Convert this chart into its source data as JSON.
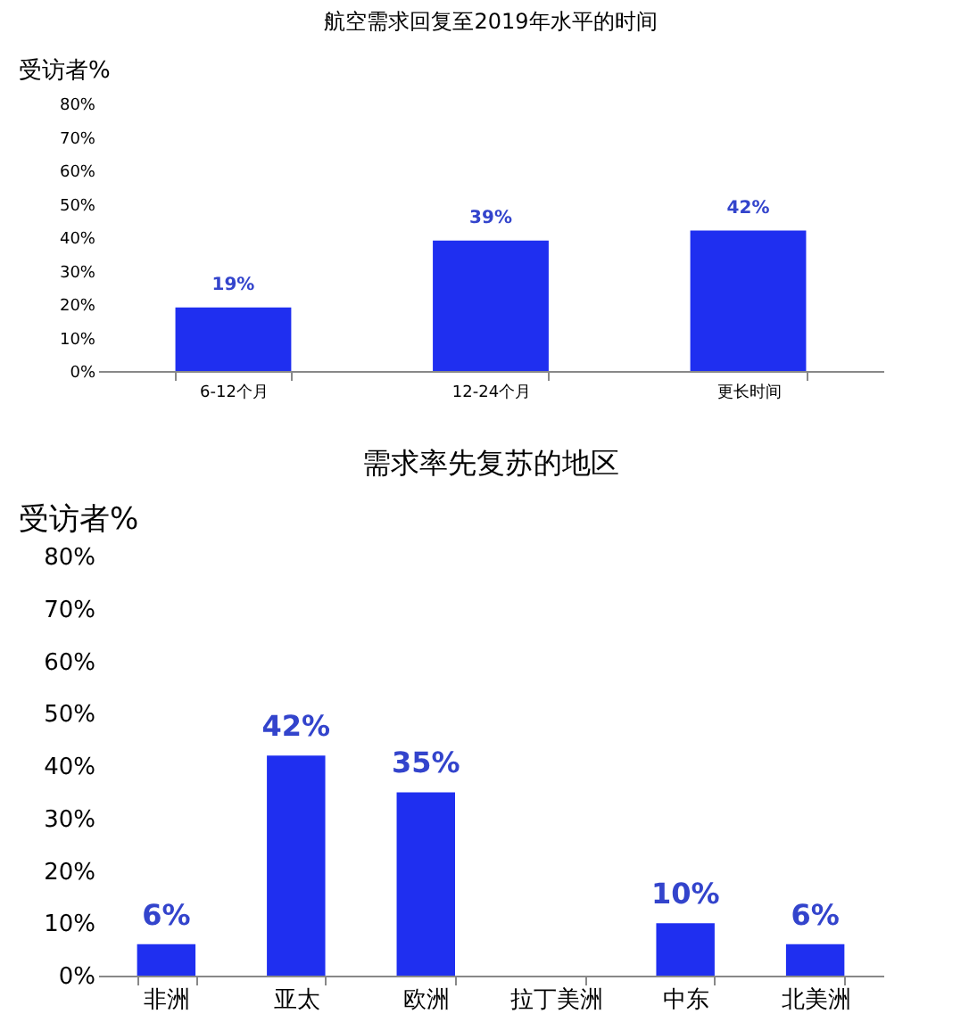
{
  "chart_data": [
    {
      "type": "bar",
      "title": "航空需求回复至2019年水平的时间",
      "ylabel": "受访者%",
      "categories": [
        "6-12个月",
        "12-24个月",
        "更长时间"
      ],
      "values": [
        19,
        39,
        42
      ],
      "value_labels": [
        "19%",
        "39%",
        "42%"
      ],
      "color": "#1f2ff0",
      "ylim": [
        0,
        80
      ],
      "yticks": [
        {
          "value": 0,
          "label": "0%"
        },
        {
          "value": 10,
          "label": "10%"
        },
        {
          "value": 20,
          "label": "20%"
        },
        {
          "value": 30,
          "label": "30%"
        },
        {
          "value": 40,
          "label": "40%"
        },
        {
          "value": 50,
          "label": "50%"
        },
        {
          "value": 60,
          "label": "60%"
        },
        {
          "value": 70,
          "label": "70%"
        },
        {
          "value": 80,
          "label": "80%"
        }
      ],
      "grid": false,
      "legend": false
    },
    {
      "type": "bar",
      "title": "需求率先复苏的地区",
      "ylabel": "受访者%",
      "categories": [
        "非洲",
        "亚太",
        "欧洲",
        "拉丁美洲",
        "中东",
        "北美洲"
      ],
      "values": [
        6,
        42,
        35,
        null,
        10,
        6
      ],
      "value_labels": [
        "6%",
        "42%",
        "35%",
        null,
        "10%",
        "6%"
      ],
      "color": "#1f2ff0",
      "ylim": [
        0,
        80
      ],
      "yticks": [
        {
          "value": 0,
          "label": "0%"
        },
        {
          "value": 10,
          "label": "10%"
        },
        {
          "value": 20,
          "label": "20%"
        },
        {
          "value": 30,
          "label": "30%"
        },
        {
          "value": 40,
          "label": "40%"
        },
        {
          "value": 50,
          "label": "50%"
        },
        {
          "value": 60,
          "label": "60%"
        },
        {
          "value": 70,
          "label": "70%"
        },
        {
          "value": 80,
          "label": "80%"
        }
      ],
      "grid": false,
      "legend": false
    }
  ]
}
